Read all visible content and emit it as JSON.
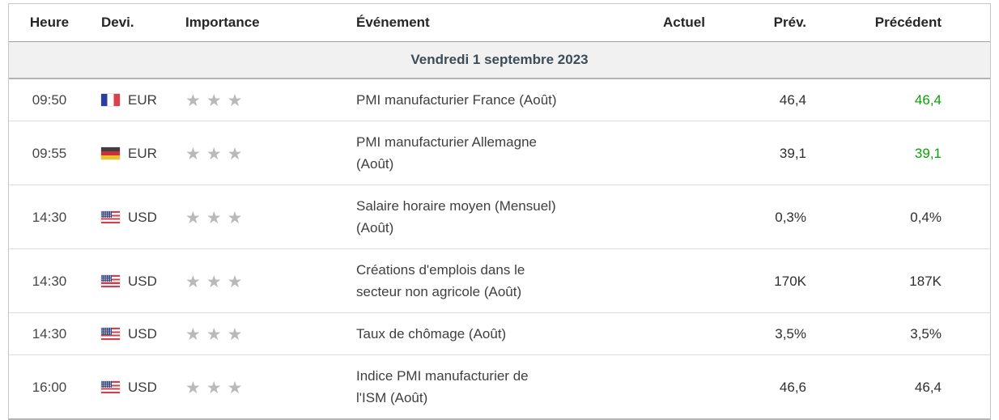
{
  "colors": {
    "green": "#0aa00a"
  },
  "header": {
    "time": "Heure",
    "currency": "Devi.",
    "importance": "Importance",
    "event": "Événement",
    "actual": "Actuel",
    "forecast": "Prév.",
    "previous": "Précédent"
  },
  "date_row": {
    "label": "Vendredi 1 septembre 2023"
  },
  "rows": [
    {
      "time": "09:50",
      "flag": "fr",
      "flag_name": "france",
      "currency": "EUR",
      "importance": 3,
      "event": "PMI manufacturier France (Août)",
      "actual": "",
      "forecast": "46,4",
      "forecast_color": "black",
      "previous": "46,4",
      "previous_color": "green"
    },
    {
      "time": "09:55",
      "flag": "de",
      "flag_name": "germany",
      "currency": "EUR",
      "importance": 3,
      "event": "PMI manufacturier Allemagne\n(Août)",
      "actual": "",
      "forecast": "39,1",
      "forecast_color": "black",
      "previous": "39,1",
      "previous_color": "green"
    },
    {
      "time": "14:30",
      "flag": "us",
      "flag_name": "united-states",
      "currency": "USD",
      "importance": 3,
      "event": "Salaire horaire moyen (Mensuel)\n(Août)",
      "actual": "",
      "forecast": "0,3%",
      "forecast_color": "black",
      "previous": "0,4%",
      "previous_color": "black"
    },
    {
      "time": "14:30",
      "flag": "us",
      "flag_name": "united-states",
      "currency": "USD",
      "importance": 3,
      "event": "Créations d'emplois dans le\nsecteur non agricole (Août)",
      "actual": "",
      "forecast": "170K",
      "forecast_color": "black",
      "previous": "187K",
      "previous_color": "black"
    },
    {
      "time": "14:30",
      "flag": "us",
      "flag_name": "united-states",
      "currency": "USD",
      "importance": 3,
      "event": "Taux de chômage (Août)",
      "actual": "",
      "forecast": "3,5%",
      "forecast_color": "black",
      "previous": "3,5%",
      "previous_color": "black"
    },
    {
      "time": "16:00",
      "flag": "us",
      "flag_name": "united-states",
      "currency": "USD",
      "importance": 3,
      "event": "Indice PMI manufacturier de\nl'ISM (Août)",
      "actual": "",
      "forecast": "46,6",
      "forecast_color": "black",
      "previous": "46,4",
      "previous_color": "black"
    }
  ]
}
